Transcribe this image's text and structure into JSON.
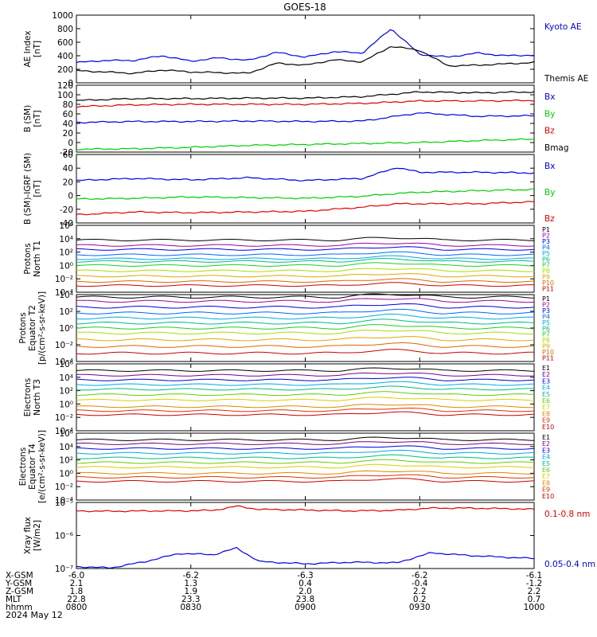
{
  "title": "GOES-18",
  "date_label": "2024 May 12",
  "colors": {
    "black": "#000000",
    "blue": "#0000dd",
    "green": "#00cc00",
    "red": "#dd0000",
    "p_scale": [
      "#000000",
      "#a000a0",
      "#0000dd",
      "#0066ff",
      "#00aadd",
      "#00bb88",
      "#22cc22",
      "#aadd00",
      "#ddaa00",
      "#dd6600",
      "#cc0000"
    ],
    "e_scale": [
      "#000000",
      "#800080",
      "#0000dd",
      "#00aadd",
      "#00bb88",
      "#66cc00",
      "#ddcc00",
      "#dd8800",
      "#dd3300",
      "#cc0000"
    ]
  },
  "chart_data": [
    {
      "type": "line",
      "ylabel": "AE Index\n[nT]",
      "ylim": [
        0,
        1000
      ],
      "ytick_labels": [
        "0",
        "200",
        "400",
        "600",
        "800",
        "1000"
      ],
      "x": [
        0,
        0.25,
        0.5,
        0.75,
        1,
        1.25,
        1.5,
        1.75,
        2,
        2.25,
        2.5,
        2.75,
        3,
        3.25,
        3.5,
        3.75,
        4
      ],
      "series": [
        {
          "name": "Kyoto AE",
          "color": "blue",
          "values": [
            300,
            330,
            330,
            400,
            320,
            370,
            330,
            450,
            380,
            460,
            440,
            800,
            420,
            380,
            440,
            400,
            410
          ]
        },
        {
          "name": "Themis AE",
          "color": "black",
          "values": [
            180,
            160,
            140,
            190,
            160,
            150,
            140,
            290,
            260,
            340,
            310,
            540,
            480,
            250,
            260,
            280,
            300
          ]
        }
      ]
    },
    {
      "type": "line",
      "ylabel": "B (SM)\n[nT]",
      "ylim": [
        -20,
        120
      ],
      "ytick_labels": [
        "-20",
        "0",
        "20",
        "40",
        "60",
        "80",
        "100",
        "120"
      ],
      "x": [
        0,
        0.5,
        1,
        1.5,
        2,
        2.5,
        3,
        3.5,
        4
      ],
      "series": [
        {
          "name": "Bx",
          "color": "blue",
          "values": [
            42,
            44,
            44,
            45,
            44,
            45,
            62,
            55,
            56
          ]
        },
        {
          "name": "By",
          "color": "green",
          "values": [
            -14,
            -13,
            -10,
            -6,
            -4,
            -2,
            0,
            4,
            7
          ]
        },
        {
          "name": "Bz",
          "color": "red",
          "values": [
            75,
            79,
            80,
            80,
            80,
            82,
            87,
            87,
            88
          ]
        },
        {
          "name": "Bmag",
          "color": "black",
          "values": [
            88,
            92,
            92,
            93,
            93,
            96,
            106,
            104,
            106
          ]
        }
      ]
    },
    {
      "type": "line",
      "ylabel": "B (SM)-IGRF (SM)\n[nT]",
      "ylim": [
        -40,
        60
      ],
      "ytick_labels": [
        "-40",
        "-20",
        "0",
        "20",
        "40",
        "60"
      ],
      "x": [
        0,
        0.5,
        1,
        1.5,
        2,
        2.5,
        2.8,
        3,
        3.5,
        4
      ],
      "series": [
        {
          "name": "Bx",
          "color": "blue",
          "values": [
            22,
            25,
            23,
            26,
            22,
            25,
            41,
            34,
            34,
            33
          ]
        },
        {
          "name": "By",
          "color": "green",
          "values": [
            -5,
            -4,
            -2,
            -3,
            -4,
            -1,
            3,
            5,
            7,
            9
          ]
        },
        {
          "name": "Bz",
          "color": "red",
          "values": [
            -28,
            -24,
            -25,
            -24,
            -23,
            -17,
            -12,
            -12,
            -12,
            -9
          ]
        }
      ]
    },
    {
      "type": "line",
      "ylabel": "Protons\nNorth T1",
      "log": true,
      "ylim": [
        -4,
        6
      ],
      "ytick_labels": [
        "10⁻⁴",
        "10⁻²",
        "10⁰",
        "10²",
        "10⁴",
        "10⁶"
      ],
      "series_names": [
        "P1",
        "P2",
        "P3",
        "P4",
        "P5",
        "P6",
        "P7",
        "P8",
        "P9",
        "P10",
        "P11"
      ],
      "levels_log10": [
        3.8,
        3.0,
        2.4,
        1.6,
        1.0,
        0.6,
        0.0,
        -0.8,
        -1.6,
        -2.4,
        -3.0
      ]
    },
    {
      "type": "line",
      "ylabel": "Protons\nEquator T2\n[p/(cm²-s-sr-keV)]",
      "log": true,
      "ylim": [
        -4,
        4
      ],
      "ytick_labels": [
        "10⁻⁴",
        "10⁻²",
        "10⁰",
        "10²",
        "10⁴"
      ],
      "series_names": [
        "P1",
        "P2",
        "P3",
        "P4",
        "P5",
        "P6",
        "P7",
        "P8",
        "P9",
        "P10",
        "P11"
      ],
      "levels_log10": [
        3.7,
        3.2,
        2.5,
        1.8,
        1.2,
        0.6,
        0.0,
        -0.6,
        -1.4,
        -2.2,
        -3.0
      ]
    },
    {
      "type": "line",
      "ylabel": "Electrons\nNorth T3",
      "log": true,
      "ylim": [
        -4,
        6
      ],
      "ytick_labels": [
        "10⁻⁴",
        "10⁻²",
        "10⁰",
        "10²",
        "10⁴",
        "10⁶"
      ],
      "series_names": [
        "E1",
        "E2",
        "E3",
        "E4",
        "E5",
        "E6",
        "E7",
        "E8",
        "E9",
        "E10"
      ],
      "levels_log10": [
        5.0,
        4.3,
        3.6,
        2.9,
        2.2,
        1.4,
        0.6,
        -0.4,
        -1.0,
        -1.6
      ]
    },
    {
      "type": "line",
      "ylabel": "Electrons\nEquator T4\n[e/(cm²-s-sr-keV)]",
      "log": true,
      "ylim": [
        -4,
        6
      ],
      "ytick_labels": [
        "10⁻⁴",
        "10⁻²",
        "10⁰",
        "10²",
        "10⁴",
        "10⁶"
      ],
      "series_names": [
        "E1",
        "E2",
        "E3",
        "E4",
        "E5",
        "E6",
        "E7",
        "E8",
        "E9",
        "E10"
      ],
      "levels_log10": [
        5.0,
        4.4,
        3.7,
        3.0,
        2.3,
        1.6,
        0.9,
        0.0,
        -0.6,
        -1.2
      ]
    },
    {
      "type": "line",
      "ylabel": "Xray flux\n[W/m2]",
      "log": true,
      "ylim": [
        -7.1,
        -5
      ],
      "ytick_labels": [
        "10⁻⁷",
        "10⁻⁶",
        "10⁻⁵"
      ],
      "x": [
        0,
        0.3,
        0.6,
        0.9,
        1.2,
        1.4,
        1.6,
        2,
        2.4,
        2.8,
        3.1,
        3.4,
        3.8,
        4
      ],
      "series": [
        {
          "name": "0.1-0.8 nm",
          "color": "red",
          "values": [
            -5.27,
            -5.28,
            -5.27,
            -5.27,
            -5.25,
            -5.12,
            -5.22,
            -5.24,
            -5.27,
            -5.25,
            -5.18,
            -5.18,
            -5.2,
            -5.22
          ]
        },
        {
          "name": "0.05-0.4 nm",
          "color": "blue",
          "values": [
            -7.04,
            -7.08,
            -6.88,
            -6.62,
            -6.66,
            -6.45,
            -6.88,
            -6.95,
            -6.9,
            -6.92,
            -6.6,
            -6.68,
            -6.75,
            -6.78
          ]
        }
      ]
    }
  ],
  "x_axis": {
    "row_labels": [
      "X-GSM",
      "Y-GSM",
      "Z-GSM",
      "MLT",
      "hhmm"
    ],
    "columns": [
      [
        "-6.0",
        "2.1",
        "1.8",
        "22.8",
        "0800"
      ],
      [
        "-6.2",
        "1.3",
        "1.9",
        "23.3",
        "0830"
      ],
      [
        "-6.3",
        "0.4",
        "2.0",
        "23.8",
        "0900"
      ],
      [
        "-6.2",
        "-0.4",
        "2.2",
        "0.2",
        "0930"
      ],
      [
        "-6.1",
        "-1.2",
        "2.2",
        "0.7",
        "1000"
      ]
    ]
  }
}
